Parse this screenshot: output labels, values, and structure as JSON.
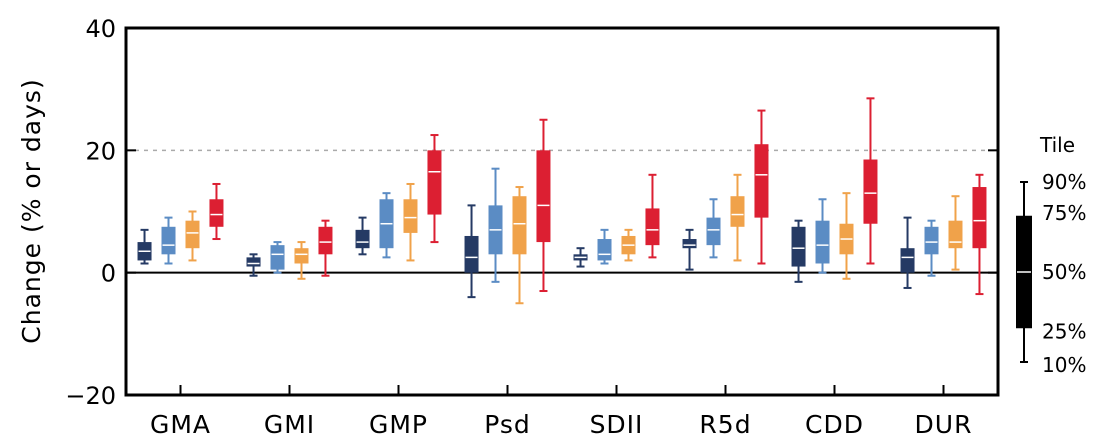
{
  "chart_data": {
    "type": "box",
    "ylabel": "Change (% or days)",
    "ylim": [
      -20,
      40
    ],
    "yticks": [
      "−20",
      "0",
      "20",
      "40"
    ],
    "ytick_values": [
      -20,
      0,
      20,
      40
    ],
    "reference_lines": [
      {
        "y": 0,
        "style": "solid"
      },
      {
        "y": 20,
        "style": "dotted"
      },
      {
        "y": 40,
        "style": "dotted"
      }
    ],
    "categories": [
      "GMA",
      "GMI",
      "GMP",
      "Psd",
      "SDII",
      "R5d",
      "CDD",
      "DUR"
    ],
    "series": [
      {
        "color": "#253a64",
        "boxes": [
          {
            "p10": 1.5,
            "p25": 2,
            "median": 3.5,
            "p75": 5,
            "p90": 7
          },
          {
            "p10": -0.5,
            "p25": 1,
            "median": 1.5,
            "p75": 2.5,
            "p90": 3
          },
          {
            "p10": 3,
            "p25": 4,
            "median": 5,
            "p75": 7,
            "p90": 9
          },
          {
            "p10": -4,
            "p25": 0,
            "median": 2.5,
            "p75": 6,
            "p90": 11
          },
          {
            "p10": 1,
            "p25": 2,
            "median": 2.5,
            "p75": 3,
            "p90": 4
          },
          {
            "p10": 0.5,
            "p25": 4,
            "median": 4.5,
            "p75": 5.5,
            "p90": 7
          },
          {
            "p10": -1.5,
            "p25": 1,
            "median": 4,
            "p75": 7.5,
            "p90": 8.5
          },
          {
            "p10": -2.5,
            "p25": 0,
            "median": 2.5,
            "p75": 4,
            "p90": 9
          }
        ]
      },
      {
        "color": "#5b8cc4",
        "boxes": [
          {
            "p10": 1.5,
            "p25": 3,
            "median": 4.5,
            "p75": 7.5,
            "p90": 9
          },
          {
            "p10": 0,
            "p25": 0.5,
            "median": 3,
            "p75": 4.5,
            "p90": 5
          },
          {
            "p10": 2.5,
            "p25": 4,
            "median": 8,
            "p75": 12,
            "p90": 13
          },
          {
            "p10": -1.5,
            "p25": 3,
            "median": 7,
            "p75": 11,
            "p90": 17
          },
          {
            "p10": 1.5,
            "p25": 2,
            "median": 3,
            "p75": 5.5,
            "p90": 7
          },
          {
            "p10": 2.5,
            "p25": 4.5,
            "median": 7,
            "p75": 9,
            "p90": 12
          },
          {
            "p10": 0,
            "p25": 1.5,
            "median": 4.5,
            "p75": 8.5,
            "p90": 12
          },
          {
            "p10": -0.5,
            "p25": 3,
            "median": 5,
            "p75": 7.5,
            "p90": 8.5
          }
        ]
      },
      {
        "color": "#f0a24a",
        "boxes": [
          {
            "p10": 2,
            "p25": 4,
            "median": 6.5,
            "p75": 8.5,
            "p90": 10
          },
          {
            "p10": -1,
            "p25": 1.5,
            "median": 3,
            "p75": 4,
            "p90": 5
          },
          {
            "p10": 2,
            "p25": 6.5,
            "median": 9,
            "p75": 12,
            "p90": 14.5
          },
          {
            "p10": -5,
            "p25": 3,
            "median": 8,
            "p75": 12.5,
            "p90": 14
          },
          {
            "p10": 2,
            "p25": 3,
            "median": 4.5,
            "p75": 6,
            "p90": 7
          },
          {
            "p10": 2,
            "p25": 7.5,
            "median": 9.5,
            "p75": 12.5,
            "p90": 16
          },
          {
            "p10": -1,
            "p25": 3,
            "median": 5.5,
            "p75": 8,
            "p90": 13
          },
          {
            "p10": 0.5,
            "p25": 4,
            "median": 5,
            "p75": 8.5,
            "p90": 12.5
          }
        ]
      },
      {
        "color": "#dc1f32",
        "boxes": [
          {
            "p10": 5.5,
            "p25": 7.5,
            "median": 9.5,
            "p75": 12,
            "p90": 14.5
          },
          {
            "p10": -0.5,
            "p25": 3,
            "median": 5,
            "p75": 7.5,
            "p90": 8.5
          },
          {
            "p10": 5,
            "p25": 9.5,
            "median": 16.5,
            "p75": 20,
            "p90": 22.5
          },
          {
            "p10": -3,
            "p25": 5,
            "median": 11,
            "p75": 20,
            "p90": 25
          },
          {
            "p10": 2.5,
            "p25": 4.5,
            "median": 7,
            "p75": 10.5,
            "p90": 16
          },
          {
            "p10": 1.5,
            "p25": 9,
            "median": 16,
            "p75": 21,
            "p90": 26.5
          },
          {
            "p10": 1.5,
            "p25": 8,
            "median": 13,
            "p75": 18.5,
            "p90": 28.5
          },
          {
            "p10": -3.5,
            "p25": 4,
            "median": 8.5,
            "p75": 14,
            "p90": 16
          }
        ]
      }
    ]
  },
  "legend": {
    "title": "Tile",
    "labels": [
      "90%",
      "75%",
      "50%",
      "25%",
      "10%"
    ],
    "key": {
      "p10": 10,
      "p25": 25,
      "median": 50,
      "p75": 75,
      "p90": 90
    },
    "color": "#000000"
  }
}
